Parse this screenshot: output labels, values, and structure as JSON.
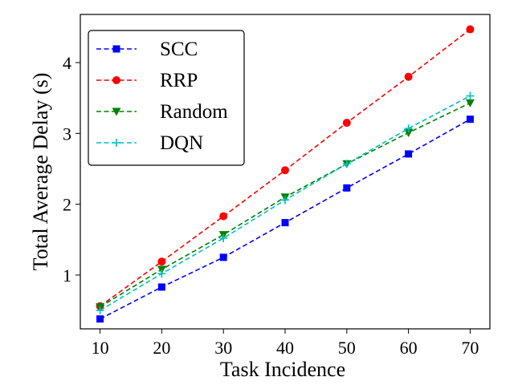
{
  "chart_data": {
    "type": "line",
    "title": "",
    "xlabel": "Task Incidence",
    "ylabel": "Total Average Delay (s)",
    "x": [
      10,
      20,
      30,
      40,
      50,
      60,
      70
    ],
    "xticks": [
      10,
      20,
      30,
      40,
      50,
      60,
      70
    ],
    "yticks": [
      1,
      2,
      3,
      4
    ],
    "xlim": [
      6.8,
      73.2
    ],
    "ylim": [
      0.24,
      4.68
    ],
    "grid": false,
    "legend_position": "top-left",
    "series": [
      {
        "name": "SCC",
        "color": "#0000ff",
        "marker": "square",
        "values": [
          0.38,
          0.83,
          1.25,
          1.74,
          2.23,
          2.71,
          3.2
        ]
      },
      {
        "name": "RRP",
        "color": "#ff0000",
        "marker": "circle",
        "values": [
          0.56,
          1.19,
          1.83,
          2.48,
          3.15,
          3.8,
          4.47
        ]
      },
      {
        "name": "Random",
        "color": "#008000",
        "marker": "triangle-down",
        "values": [
          0.55,
          1.08,
          1.57,
          2.1,
          2.57,
          3.01,
          3.43
        ]
      },
      {
        "name": "DQN",
        "color": "#00bfbf",
        "marker": "plus",
        "values": [
          0.5,
          1.02,
          1.52,
          2.06,
          2.57,
          3.07,
          3.53
        ]
      }
    ]
  }
}
